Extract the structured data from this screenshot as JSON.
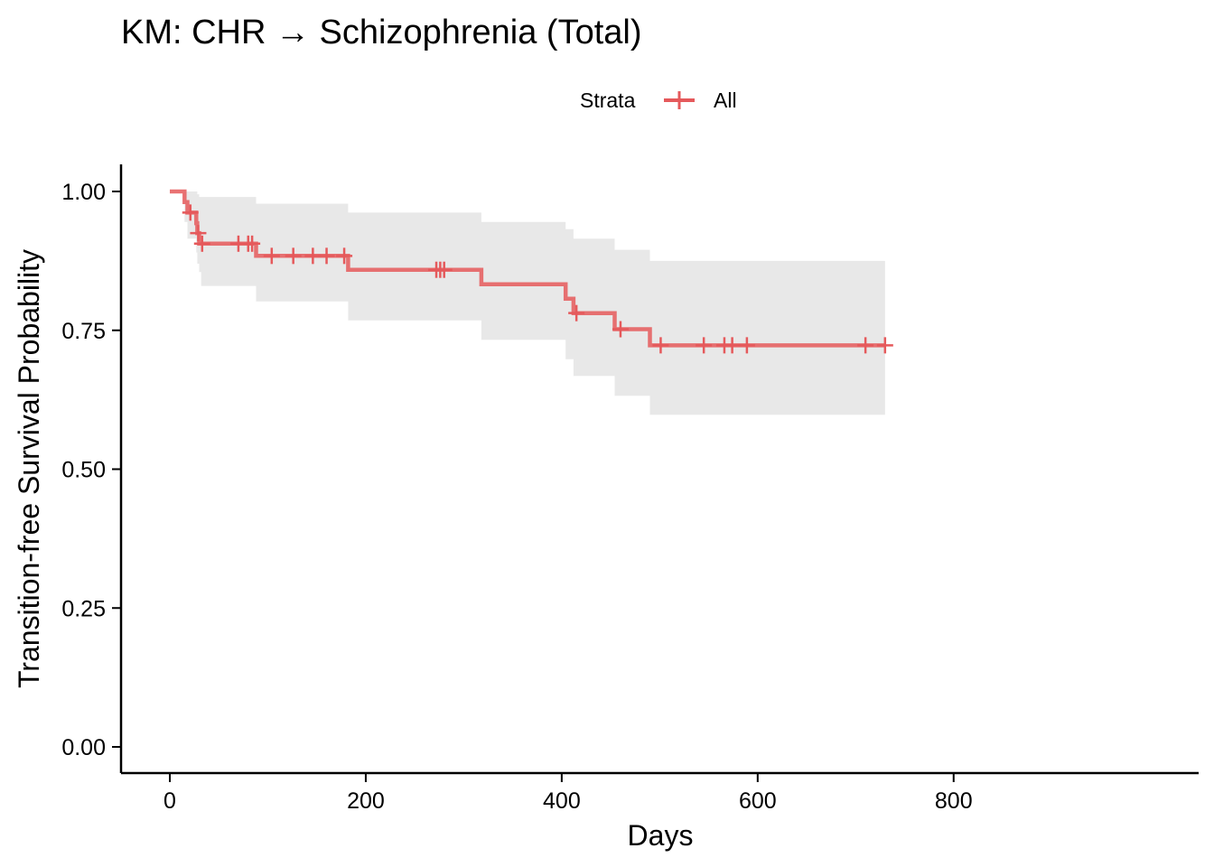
{
  "chart_data": {
    "type": "line",
    "subtype": "kaplan-meier-step",
    "title": "KM: CHR → Schizophrenia (Total)",
    "xlabel": "Days",
    "ylabel": "Transition-free Survival Probability",
    "xlim": [
      0,
      800
    ],
    "ylim": [
      0,
      1
    ],
    "x_ticks": [
      0,
      200,
      400,
      600,
      800
    ],
    "x_tick_labels": [
      "0",
      "200",
      "400",
      "600",
      "800"
    ],
    "y_ticks": [
      0,
      0.25,
      0.5,
      0.75,
      1.0
    ],
    "y_tick_labels": [
      "0.00",
      "0.25",
      "0.50",
      "0.75",
      "1.00"
    ],
    "grid": false,
    "legend": {
      "position": "top",
      "title": "Strata",
      "entries": [
        "All"
      ]
    },
    "series": [
      {
        "name": "All",
        "color": "#e5595b",
        "ci_color": "#e8e8e8",
        "steps": [
          {
            "x": 0,
            "y": 1.0,
            "lower": 1.0,
            "upper": 1.0
          },
          {
            "x": 15,
            "y": 0.981,
            "lower": 0.945,
            "upper": 1.0
          },
          {
            "x": 18,
            "y": 0.962,
            "lower": 0.915,
            "upper": 1.0
          },
          {
            "x": 27,
            "y": 0.943,
            "lower": 0.89,
            "upper": 1.0
          },
          {
            "x": 28,
            "y": 0.925,
            "lower": 0.87,
            "upper": 0.995
          },
          {
            "x": 30,
            "y": 0.906,
            "lower": 0.855,
            "upper": 0.99
          },
          {
            "x": 32,
            "y": 0.906,
            "lower": 0.83,
            "upper": 0.99
          },
          {
            "x": 88,
            "y": 0.884,
            "lower": 0.802,
            "upper": 0.978
          },
          {
            "x": 182,
            "y": 0.859,
            "lower": 0.768,
            "upper": 0.962
          },
          {
            "x": 318,
            "y": 0.833,
            "lower": 0.733,
            "upper": 0.945
          },
          {
            "x": 404,
            "y": 0.807,
            "lower": 0.698,
            "upper": 0.932
          },
          {
            "x": 412,
            "y": 0.781,
            "lower": 0.668,
            "upper": 0.915
          },
          {
            "x": 454,
            "y": 0.752,
            "lower": 0.632,
            "upper": 0.895
          },
          {
            "x": 490,
            "y": 0.723,
            "lower": 0.598,
            "upper": 0.875
          }
        ],
        "x_end": 730,
        "censor_marks": [
          {
            "x": 21,
            "y": 0.962
          },
          {
            "x": 29,
            "y": 0.925
          },
          {
            "x": 33,
            "y": 0.906
          },
          {
            "x": 70,
            "y": 0.906
          },
          {
            "x": 80,
            "y": 0.906
          },
          {
            "x": 84,
            "y": 0.906
          },
          {
            "x": 104,
            "y": 0.884
          },
          {
            "x": 126,
            "y": 0.884
          },
          {
            "x": 146,
            "y": 0.884
          },
          {
            "x": 160,
            "y": 0.884
          },
          {
            "x": 178,
            "y": 0.884
          },
          {
            "x": 272,
            "y": 0.859
          },
          {
            "x": 276,
            "y": 0.859
          },
          {
            "x": 280,
            "y": 0.859
          },
          {
            "x": 415,
            "y": 0.781
          },
          {
            "x": 460,
            "y": 0.752
          },
          {
            "x": 501,
            "y": 0.723
          },
          {
            "x": 545,
            "y": 0.723
          },
          {
            "x": 566,
            "y": 0.723
          },
          {
            "x": 574,
            "y": 0.723
          },
          {
            "x": 589,
            "y": 0.723
          },
          {
            "x": 710,
            "y": 0.723
          },
          {
            "x": 730,
            "y": 0.723
          }
        ]
      }
    ]
  }
}
